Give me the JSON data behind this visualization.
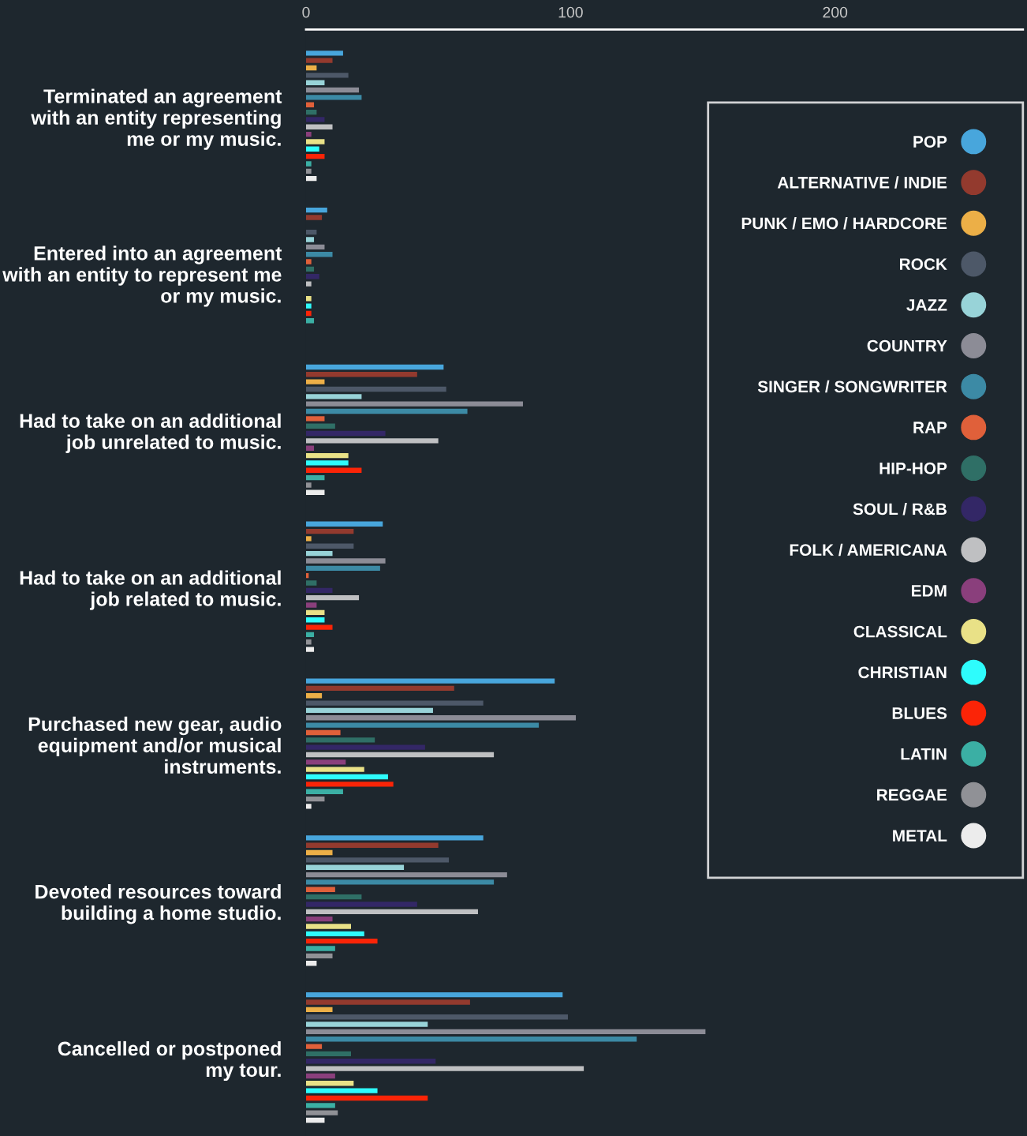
{
  "chart_data": {
    "type": "bar",
    "orientation": "horizontal",
    "categories": [
      "Terminated an agreement\nwith an entity representing\nme or my music.",
      "Entered into an agreement\nwith an entity to represent me\nor my music.",
      "Had to take on an additional\njob unrelated to music.",
      "Had to take on an additional\njob related to music.",
      "Purchased new gear, audio\nequipment and/or musical\ninstruments.",
      "Devoted resources toward\nbuilding a home studio.",
      "Cancelled or postponed\nmy tour."
    ],
    "series": [
      {
        "name": "POP",
        "color": "#48a6dc",
        "values": [
          14,
          8,
          52,
          29,
          94,
          67,
          97
        ]
      },
      {
        "name": "ALTERNATIVE / INDIE",
        "color": "#933a2e",
        "values": [
          10,
          6,
          42,
          18,
          56,
          50,
          62
        ]
      },
      {
        "name": "PUNK / EMO / HARDCORE",
        "color": "#ecaf47",
        "values": [
          4,
          0,
          7,
          2,
          6,
          10,
          10
        ]
      },
      {
        "name": "ROCK",
        "color": "#4d5868",
        "values": [
          16,
          4,
          53,
          18,
          67,
          54,
          99
        ]
      },
      {
        "name": "JAZZ",
        "color": "#98d3d8",
        "values": [
          7,
          3,
          21,
          10,
          48,
          37,
          46
        ]
      },
      {
        "name": "COUNTRY",
        "color": "#8c8c96",
        "values": [
          20,
          7,
          82,
          30,
          102,
          76,
          151
        ]
      },
      {
        "name": "SINGER / SONGWRITER",
        "color": "#3c8aa5",
        "values": [
          21,
          10,
          61,
          28,
          88,
          71,
          125
        ]
      },
      {
        "name": "RAP",
        "color": "#e0603a",
        "values": [
          3,
          2,
          7,
          1,
          13,
          11,
          6
        ]
      },
      {
        "name": "HIP-HOP",
        "color": "#2f6f66",
        "values": [
          4,
          3,
          11,
          4,
          26,
          21,
          17
        ]
      },
      {
        "name": "SOUL / R&B",
        "color": "#332766",
        "values": [
          7,
          5,
          30,
          10,
          45,
          42,
          49
        ]
      },
      {
        "name": "FOLK / AMERICANA",
        "color": "#bfc0c2",
        "values": [
          10,
          2,
          50,
          20,
          71,
          65,
          105
        ]
      },
      {
        "name": "EDM",
        "color": "#8a3f7c",
        "values": [
          2,
          0,
          3,
          4,
          15,
          10,
          11
        ]
      },
      {
        "name": "CLASSICAL",
        "color": "#e9e187",
        "values": [
          7,
          2,
          16,
          7,
          22,
          17,
          18
        ]
      },
      {
        "name": "CHRISTIAN",
        "color": "#2efcfc",
        "values": [
          5,
          2,
          16,
          7,
          31,
          22,
          27
        ]
      },
      {
        "name": "BLUES",
        "color": "#fb2407",
        "values": [
          7,
          2,
          21,
          10,
          33,
          27,
          46
        ]
      },
      {
        "name": "LATIN",
        "color": "#3bafa4",
        "values": [
          2,
          3,
          7,
          3,
          14,
          11,
          11
        ]
      },
      {
        "name": "REGGAE",
        "color": "#909196",
        "values": [
          2,
          0,
          2,
          2,
          7,
          10,
          12
        ]
      },
      {
        "name": "METAL",
        "color": "#ececec",
        "values": [
          4,
          0,
          7,
          3,
          2,
          4,
          7
        ]
      }
    ],
    "xlim": [
      0,
      271
    ],
    "xticks": [
      0,
      100,
      200
    ],
    "grid": false,
    "legend": "right"
  }
}
